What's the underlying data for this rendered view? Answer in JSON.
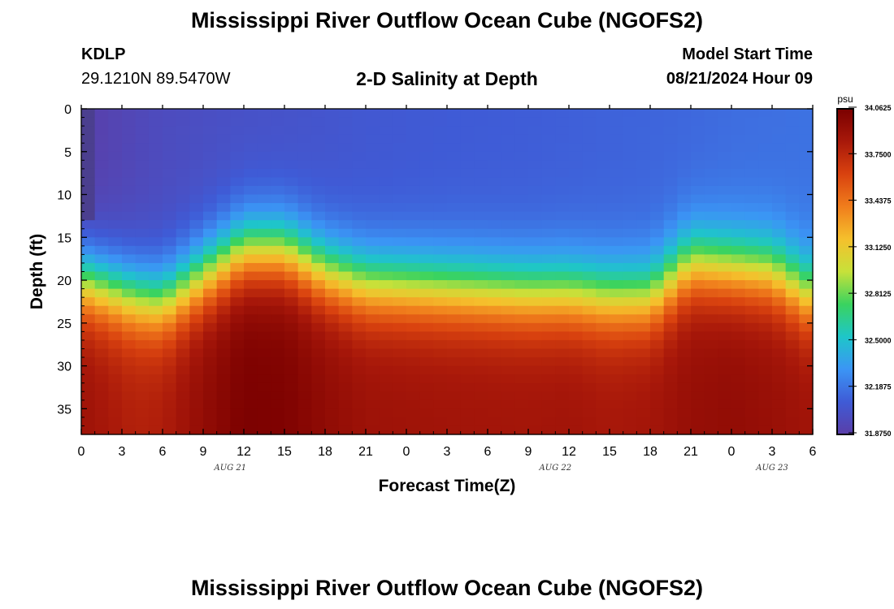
{
  "header": {
    "title": "Mississippi River Outflow Ocean Cube (NGOFS2)",
    "station": "KDLP",
    "coordinates": "29.1210N  89.5470W",
    "subtitle": "2-D Salinity at Depth",
    "model_start_label": "Model Start Time",
    "model_start_value": "08/21/2024 Hour 09"
  },
  "footer": {
    "title": "Mississippi River Outflow Ocean Cube (NGOFS2)"
  },
  "chart_data": {
    "type": "heatmap",
    "title": "2-D Salinity at Depth",
    "xlabel": "Forecast Time(Z)",
    "ylabel": "Depth (ft)",
    "x_tick_labels": [
      "0",
      "3",
      "6",
      "9",
      "12",
      "15",
      "18",
      "21",
      "0",
      "3",
      "6",
      "9",
      "12",
      "15",
      "18",
      "21",
      "0",
      "3",
      "6"
    ],
    "x_hours": [
      0,
      54
    ],
    "date_labels": [
      {
        "label": "AUG 21",
        "hour": 11
      },
      {
        "label": "AUG 22",
        "hour": 35
      },
      {
        "label": "AUG 23",
        "hour": 51
      }
    ],
    "y_tick_labels": [
      "0",
      "5",
      "10",
      "15",
      "20",
      "25",
      "30",
      "35"
    ],
    "ylim": [
      38,
      0
    ],
    "colorbar": {
      "unit": "psu",
      "ticks": [
        "34.0625",
        "33.7500",
        "33.4375",
        "33.1250",
        "32.8125",
        "32.5000",
        "32.1875",
        "31.8750"
      ],
      "range": [
        31.875,
        34.0625
      ],
      "colors": [
        "#5a3ea8",
        "#3f5bd6",
        "#3b95f5",
        "#1ec6c9",
        "#3ad35f",
        "#c7e13a",
        "#f5c02c",
        "#f07d1c",
        "#d9420f",
        "#a8180a",
        "#7a0000"
      ]
    },
    "salinity_profile": {
      "hours": [
        0,
        4,
        6,
        9,
        12,
        15,
        18,
        21,
        27,
        33,
        36,
        39,
        42,
        45,
        48,
        51,
        54
      ],
      "surface_psu": [
        31.88,
        31.95,
        31.98,
        32.0,
        32.02,
        32.03,
        32.05,
        32.07,
        32.09,
        32.1,
        32.11,
        32.12,
        32.13,
        32.14,
        32.16,
        32.17,
        32.18
      ],
      "halocline_depth_ft": [
        20,
        22,
        22.5,
        19.5,
        16.5,
        16.5,
        19,
        20.5,
        21,
        21.5,
        21.5,
        22,
        22,
        18,
        18.5,
        19,
        22
      ],
      "bottom_psu": [
        33.9,
        33.8,
        33.82,
        33.95,
        34.05,
        34.04,
        33.96,
        33.9,
        33.88,
        33.87,
        33.88,
        33.85,
        33.87,
        33.93,
        33.95,
        33.92,
        33.88
      ]
    }
  }
}
